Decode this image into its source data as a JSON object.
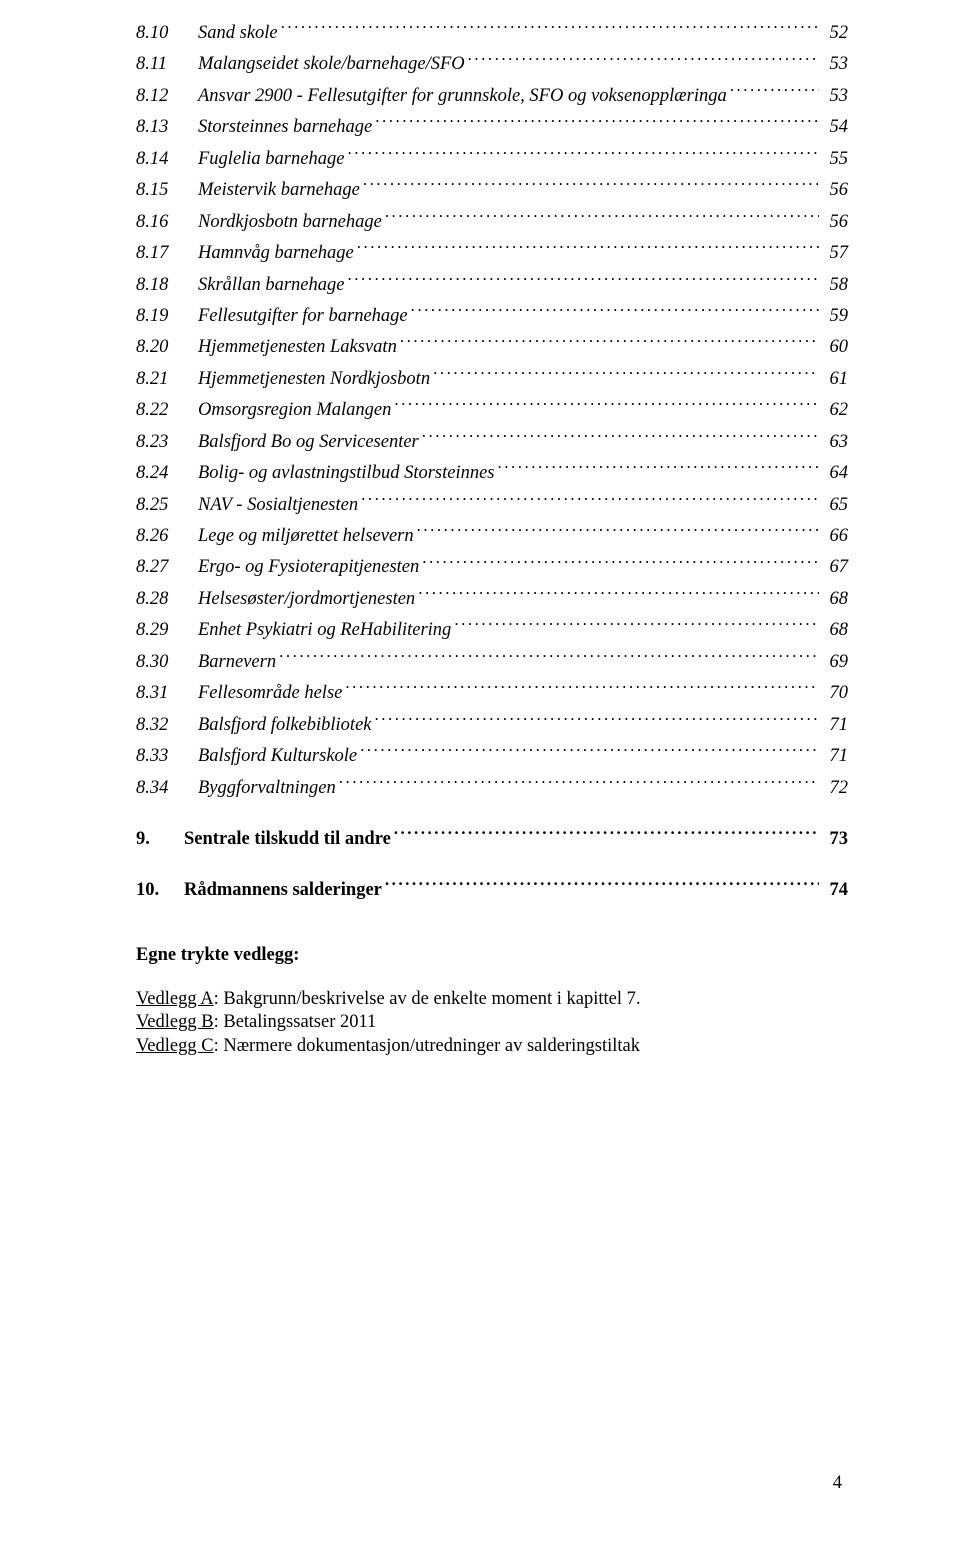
{
  "toc": {
    "subItems": [
      {
        "num": "8.10",
        "title": "Sand skole",
        "page": "52"
      },
      {
        "num": "8.11",
        "title": "Malangseidet skole/barnehage/SFO",
        "page": "53"
      },
      {
        "num": "8.12",
        "title": "Ansvar 2900 - Fellesutgifter for grunnskole, SFO og voksenopplæringa",
        "page": "53"
      },
      {
        "num": "8.13",
        "title": "Storsteinnes barnehage",
        "page": "54"
      },
      {
        "num": "8.14",
        "title": "Fuglelia barnehage",
        "page": "55"
      },
      {
        "num": "8.15",
        "title": "Meistervik barnehage",
        "page": "56"
      },
      {
        "num": "8.16",
        "title": "Nordkjosbotn barnehage",
        "page": "56"
      },
      {
        "num": "8.17",
        "title": "Hamnvåg barnehage",
        "page": "57"
      },
      {
        "num": "8.18",
        "title": "Skrållan barnehage",
        "page": "58"
      },
      {
        "num": "8.19",
        "title": "Fellesutgifter for barnehage",
        "page": "59"
      },
      {
        "num": "8.20",
        "title": "Hjemmetjenesten Laksvatn",
        "page": "60"
      },
      {
        "num": "8.21",
        "title": "Hjemmetjenesten Nordkjosbotn",
        "page": "61"
      },
      {
        "num": "8.22",
        "title": "Omsorgsregion Malangen",
        "page": "62"
      },
      {
        "num": "8.23",
        "title": "Balsfjord Bo og Servicesenter",
        "page": "63"
      },
      {
        "num": "8.24",
        "title": "Bolig- og avlastningstilbud Storsteinnes",
        "page": "64"
      },
      {
        "num": "8.25",
        "title": "NAV - Sosialtjenesten",
        "page": "65"
      },
      {
        "num": "8.26",
        "title": "Lege og miljørettet helsevern",
        "page": "66"
      },
      {
        "num": "8.27",
        "title": "Ergo- og Fysioterapitjenesten",
        "page": "67"
      },
      {
        "num": "8.28",
        "title": "Helsesøster/jordmortjenesten",
        "page": "68"
      },
      {
        "num": "8.29",
        "title": "Enhet Psykiatri og ReHabilitering",
        "page": "68"
      },
      {
        "num": "8.30",
        "title": "Barnevern",
        "page": "69"
      },
      {
        "num": "8.31",
        "title": "Fellesområde helse",
        "page": "70"
      },
      {
        "num": "8.32",
        "title": "Balsfjord folkebibliotek",
        "page": "71"
      },
      {
        "num": "8.33",
        "title": "Balsfjord Kulturskole",
        "page": "71"
      },
      {
        "num": "8.34",
        "title": "Byggforvaltningen",
        "page": "72"
      }
    ],
    "mainItems": [
      {
        "num": "9.",
        "title": "Sentrale tilskudd til andre",
        "page": "73"
      },
      {
        "num": "10.",
        "title": "Rådmannens salderinger",
        "page": "74"
      }
    ]
  },
  "appendix": {
    "heading": "Egne trykte vedlegg:",
    "lines": [
      {
        "label": "Vedlegg A",
        "text": ": Bakgrunn/beskrivelse av de enkelte moment i kapittel 7."
      },
      {
        "label": "Vedlegg B",
        "text": ": Betalingssatser 2011"
      },
      {
        "label": "Vedlegg C",
        "text": ": Nærmere dokumentasjon/utredninger av salderingstiltak"
      }
    ]
  },
  "pageNumber": "4"
}
